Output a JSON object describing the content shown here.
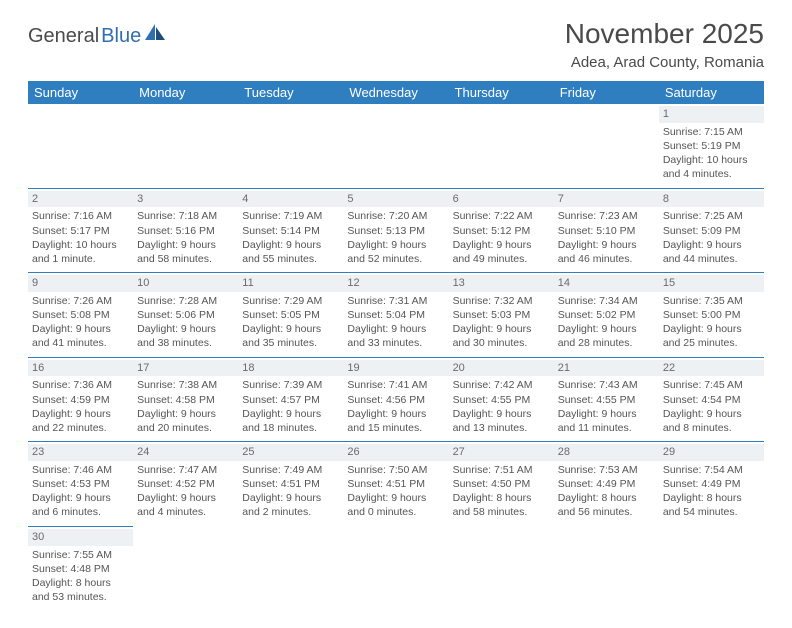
{
  "logo": {
    "word1": "General",
    "word2": "Blue"
  },
  "title": "November 2025",
  "location": "Adea, Arad County, Romania",
  "colors": {
    "header_bg": "#2f7ec0",
    "header_text": "#ffffff",
    "daynum_bg": "#eef1f3",
    "border": "#2f7ec0",
    "body_text": "#555555",
    "title_text": "#4a4a4a"
  },
  "weekdays": [
    "Sunday",
    "Monday",
    "Tuesday",
    "Wednesday",
    "Thursday",
    "Friday",
    "Saturday"
  ],
  "weeks": [
    [
      {
        "blank": true
      },
      {
        "blank": true
      },
      {
        "blank": true
      },
      {
        "blank": true
      },
      {
        "blank": true
      },
      {
        "blank": true
      },
      {
        "day": "1",
        "sunrise": "Sunrise: 7:15 AM",
        "sunset": "Sunset: 5:19 PM",
        "daylight1": "Daylight: 10 hours",
        "daylight2": "and 4 minutes."
      }
    ],
    [
      {
        "day": "2",
        "sunrise": "Sunrise: 7:16 AM",
        "sunset": "Sunset: 5:17 PM",
        "daylight1": "Daylight: 10 hours",
        "daylight2": "and 1 minute."
      },
      {
        "day": "3",
        "sunrise": "Sunrise: 7:18 AM",
        "sunset": "Sunset: 5:16 PM",
        "daylight1": "Daylight: 9 hours",
        "daylight2": "and 58 minutes."
      },
      {
        "day": "4",
        "sunrise": "Sunrise: 7:19 AM",
        "sunset": "Sunset: 5:14 PM",
        "daylight1": "Daylight: 9 hours",
        "daylight2": "and 55 minutes."
      },
      {
        "day": "5",
        "sunrise": "Sunrise: 7:20 AM",
        "sunset": "Sunset: 5:13 PM",
        "daylight1": "Daylight: 9 hours",
        "daylight2": "and 52 minutes."
      },
      {
        "day": "6",
        "sunrise": "Sunrise: 7:22 AM",
        "sunset": "Sunset: 5:12 PM",
        "daylight1": "Daylight: 9 hours",
        "daylight2": "and 49 minutes."
      },
      {
        "day": "7",
        "sunrise": "Sunrise: 7:23 AM",
        "sunset": "Sunset: 5:10 PM",
        "daylight1": "Daylight: 9 hours",
        "daylight2": "and 46 minutes."
      },
      {
        "day": "8",
        "sunrise": "Sunrise: 7:25 AM",
        "sunset": "Sunset: 5:09 PM",
        "daylight1": "Daylight: 9 hours",
        "daylight2": "and 44 minutes."
      }
    ],
    [
      {
        "day": "9",
        "sunrise": "Sunrise: 7:26 AM",
        "sunset": "Sunset: 5:08 PM",
        "daylight1": "Daylight: 9 hours",
        "daylight2": "and 41 minutes."
      },
      {
        "day": "10",
        "sunrise": "Sunrise: 7:28 AM",
        "sunset": "Sunset: 5:06 PM",
        "daylight1": "Daylight: 9 hours",
        "daylight2": "and 38 minutes."
      },
      {
        "day": "11",
        "sunrise": "Sunrise: 7:29 AM",
        "sunset": "Sunset: 5:05 PM",
        "daylight1": "Daylight: 9 hours",
        "daylight2": "and 35 minutes."
      },
      {
        "day": "12",
        "sunrise": "Sunrise: 7:31 AM",
        "sunset": "Sunset: 5:04 PM",
        "daylight1": "Daylight: 9 hours",
        "daylight2": "and 33 minutes."
      },
      {
        "day": "13",
        "sunrise": "Sunrise: 7:32 AM",
        "sunset": "Sunset: 5:03 PM",
        "daylight1": "Daylight: 9 hours",
        "daylight2": "and 30 minutes."
      },
      {
        "day": "14",
        "sunrise": "Sunrise: 7:34 AM",
        "sunset": "Sunset: 5:02 PM",
        "daylight1": "Daylight: 9 hours",
        "daylight2": "and 28 minutes."
      },
      {
        "day": "15",
        "sunrise": "Sunrise: 7:35 AM",
        "sunset": "Sunset: 5:00 PM",
        "daylight1": "Daylight: 9 hours",
        "daylight2": "and 25 minutes."
      }
    ],
    [
      {
        "day": "16",
        "sunrise": "Sunrise: 7:36 AM",
        "sunset": "Sunset: 4:59 PM",
        "daylight1": "Daylight: 9 hours",
        "daylight2": "and 22 minutes."
      },
      {
        "day": "17",
        "sunrise": "Sunrise: 7:38 AM",
        "sunset": "Sunset: 4:58 PM",
        "daylight1": "Daylight: 9 hours",
        "daylight2": "and 20 minutes."
      },
      {
        "day": "18",
        "sunrise": "Sunrise: 7:39 AM",
        "sunset": "Sunset: 4:57 PM",
        "daylight1": "Daylight: 9 hours",
        "daylight2": "and 18 minutes."
      },
      {
        "day": "19",
        "sunrise": "Sunrise: 7:41 AM",
        "sunset": "Sunset: 4:56 PM",
        "daylight1": "Daylight: 9 hours",
        "daylight2": "and 15 minutes."
      },
      {
        "day": "20",
        "sunrise": "Sunrise: 7:42 AM",
        "sunset": "Sunset: 4:55 PM",
        "daylight1": "Daylight: 9 hours",
        "daylight2": "and 13 minutes."
      },
      {
        "day": "21",
        "sunrise": "Sunrise: 7:43 AM",
        "sunset": "Sunset: 4:55 PM",
        "daylight1": "Daylight: 9 hours",
        "daylight2": "and 11 minutes."
      },
      {
        "day": "22",
        "sunrise": "Sunrise: 7:45 AM",
        "sunset": "Sunset: 4:54 PM",
        "daylight1": "Daylight: 9 hours",
        "daylight2": "and 8 minutes."
      }
    ],
    [
      {
        "day": "23",
        "sunrise": "Sunrise: 7:46 AM",
        "sunset": "Sunset: 4:53 PM",
        "daylight1": "Daylight: 9 hours",
        "daylight2": "and 6 minutes."
      },
      {
        "day": "24",
        "sunrise": "Sunrise: 7:47 AM",
        "sunset": "Sunset: 4:52 PM",
        "daylight1": "Daylight: 9 hours",
        "daylight2": "and 4 minutes."
      },
      {
        "day": "25",
        "sunrise": "Sunrise: 7:49 AM",
        "sunset": "Sunset: 4:51 PM",
        "daylight1": "Daylight: 9 hours",
        "daylight2": "and 2 minutes."
      },
      {
        "day": "26",
        "sunrise": "Sunrise: 7:50 AM",
        "sunset": "Sunset: 4:51 PM",
        "daylight1": "Daylight: 9 hours",
        "daylight2": "and 0 minutes."
      },
      {
        "day": "27",
        "sunrise": "Sunrise: 7:51 AM",
        "sunset": "Sunset: 4:50 PM",
        "daylight1": "Daylight: 8 hours",
        "daylight2": "and 58 minutes."
      },
      {
        "day": "28",
        "sunrise": "Sunrise: 7:53 AM",
        "sunset": "Sunset: 4:49 PM",
        "daylight1": "Daylight: 8 hours",
        "daylight2": "and 56 minutes."
      },
      {
        "day": "29",
        "sunrise": "Sunrise: 7:54 AM",
        "sunset": "Sunset: 4:49 PM",
        "daylight1": "Daylight: 8 hours",
        "daylight2": "and 54 minutes."
      }
    ],
    [
      {
        "day": "30",
        "sunrise": "Sunrise: 7:55 AM",
        "sunset": "Sunset: 4:48 PM",
        "daylight1": "Daylight: 8 hours",
        "daylight2": "and 53 minutes."
      },
      {
        "blank": true
      },
      {
        "blank": true
      },
      {
        "blank": true
      },
      {
        "blank": true
      },
      {
        "blank": true
      },
      {
        "blank": true
      }
    ]
  ]
}
